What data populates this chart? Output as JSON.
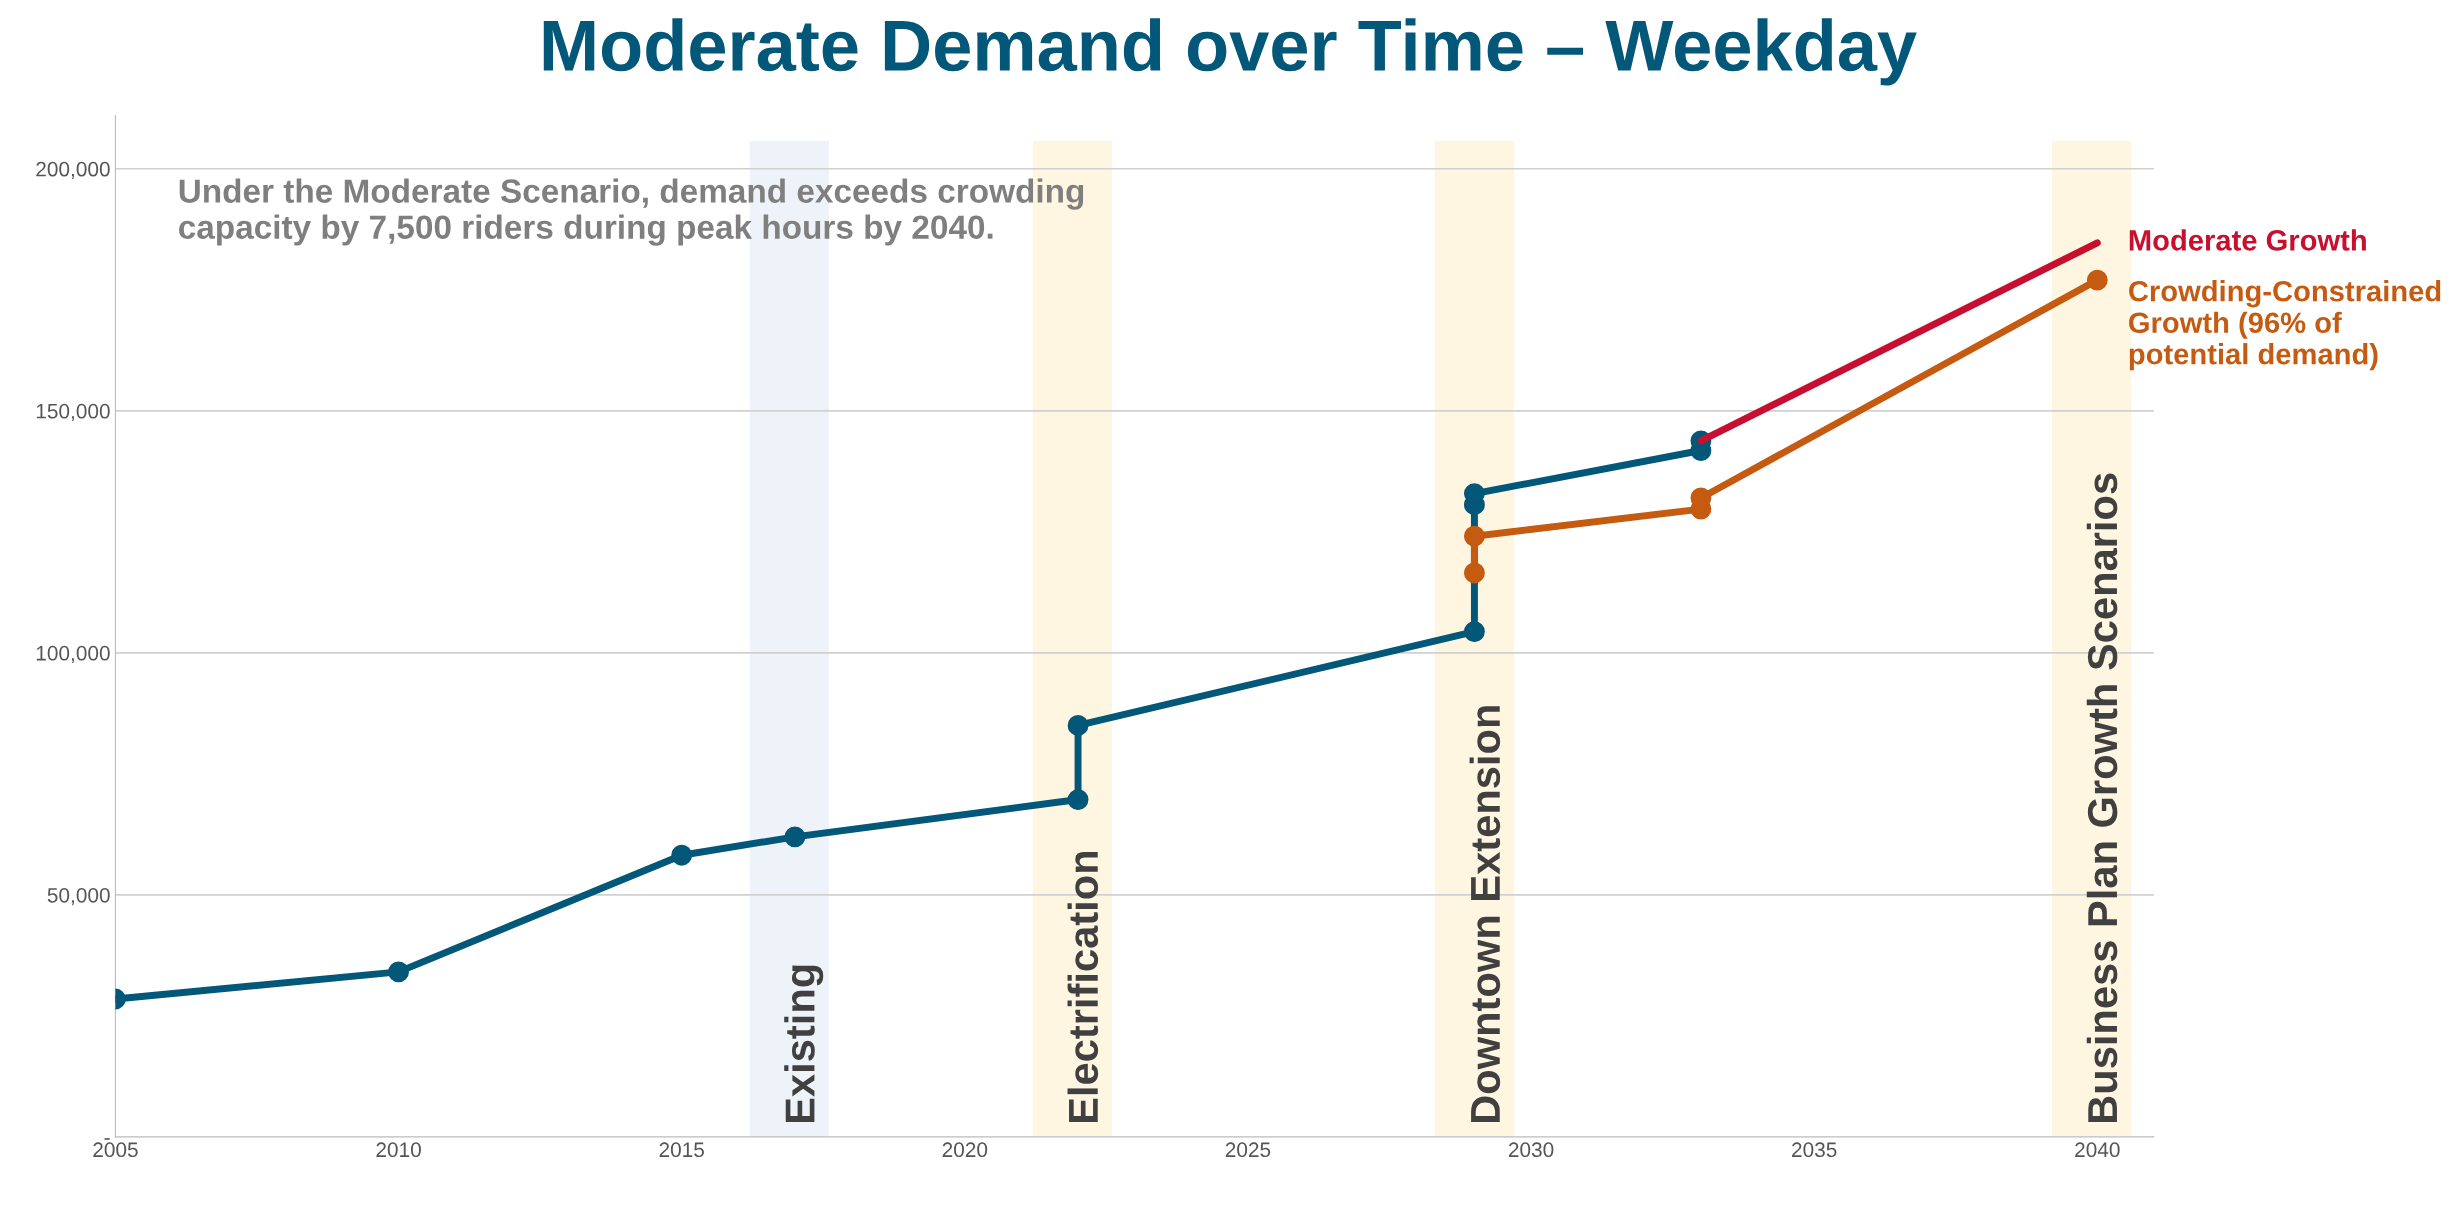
{
  "chart_data": {
    "type": "line",
    "title": "Moderate Demand over Time – Weekday",
    "annotations": [
      "Under the Moderate Scenario, demand exceeds crowding capacity by 7,500 riders during peak hours by 2040."
    ],
    "series": [
      {
        "color": "#035778",
        "x": [
          2005,
          2010,
          2015,
          2017,
          2022,
          2022,
          2029,
          2029,
          2029,
          2033,
          2033
        ],
        "values": [
          28500,
          34100,
          58200,
          62000,
          69700,
          85000,
          104400,
          130600,
          132900,
          141800,
          143800
        ]
      },
      {
        "name": "Crowding-Constrained Growth (96% of potential demand)",
        "color": "#c55a11",
        "x": [
          2029,
          2029,
          2033,
          2033,
          2040
        ],
        "values": [
          116500,
          124100,
          129700,
          132000,
          177000
        ]
      },
      {
        "name": "Moderate Growth",
        "color": "#c8102e",
        "marker": "none",
        "x": [
          2033,
          2040
        ],
        "values": [
          143800,
          184700
        ]
      }
    ],
    "bands": [
      {
        "axis": "x",
        "from": 2016.2,
        "to": 2017.6,
        "label": "Existing",
        "color": "#eef3fa"
      },
      {
        "axis": "x",
        "from": 2021.2,
        "to": 2022.6,
        "label": "Electrification",
        "color": "#fff6e2"
      },
      {
        "axis": "x",
        "from": 2028.3,
        "to": 2029.7,
        "label": "Downtown Extension",
        "color": "#fff6e2"
      },
      {
        "axis": "x",
        "from": 2039.2,
        "to": 2040.6,
        "label": "Business Plan Growth Scenarios",
        "color": "#fff6e2"
      }
    ],
    "xlim": [
      2005,
      2041
    ],
    "xticks": [
      2005,
      2010,
      2015,
      2020,
      2025,
      2030,
      2035,
      2040
    ],
    "ylim": [
      0,
      211000
    ],
    "yticks": [
      {
        "value": 0,
        "label": "-"
      },
      {
        "value": 50000,
        "label": "50,000"
      },
      {
        "value": 100000,
        "label": "100,000"
      },
      {
        "value": 150000,
        "label": "150,000"
      },
      {
        "value": 200000,
        "label": "200,000"
      }
    ],
    "grid": "y",
    "legend": false,
    "marker": "circle",
    "line_style": "solid"
  }
}
